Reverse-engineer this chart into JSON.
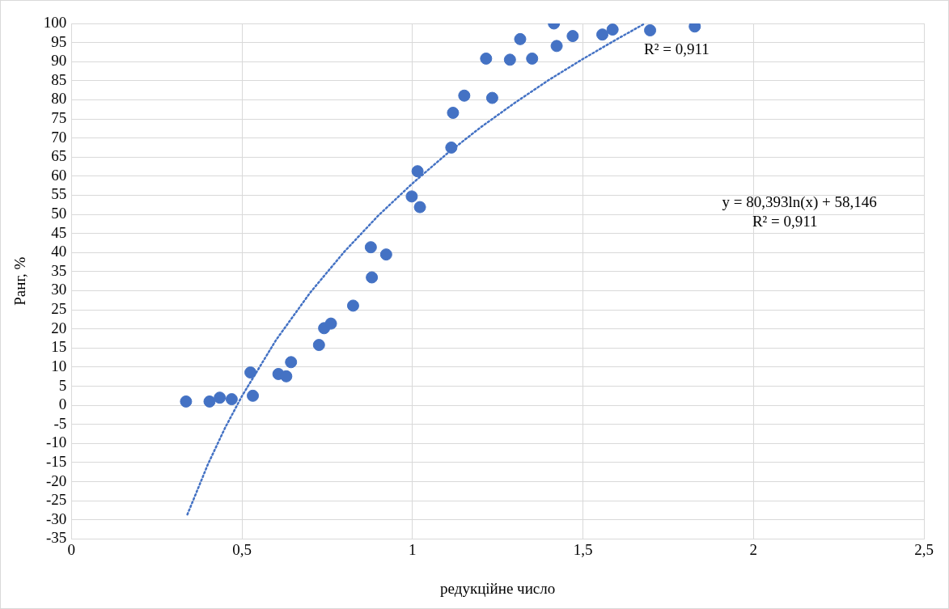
{
  "chart_data": {
    "type": "scatter",
    "xlabel": "редукційне число",
    "ylabel": "Ранг, %",
    "xlim": [
      0,
      2.5
    ],
    "xticks": [
      0,
      {
        "value": 0.5,
        "label": "0,5"
      },
      1,
      {
        "value": 1.5,
        "label": "1,5"
      },
      2,
      {
        "value": 2.5,
        "label": "2,5"
      }
    ],
    "ylim": [
      -35,
      100
    ],
    "yticks": [
      -35,
      -30,
      -25,
      -20,
      -15,
      -10,
      -5,
      0,
      5,
      10,
      15,
      20,
      25,
      30,
      35,
      40,
      45,
      50,
      55,
      60,
      65,
      70,
      75,
      80,
      85,
      90,
      95,
      100
    ],
    "grid": true,
    "legend": false,
    "series": [
      {
        "color": "#4472c4",
        "marker": "circle",
        "x": [
          0.336,
          0.405,
          0.435,
          0.47,
          0.525,
          0.532,
          0.607,
          0.63,
          0.644,
          0.726,
          0.741,
          0.761,
          0.826,
          0.878,
          0.881,
          0.923,
          0.998,
          1.015,
          1.022,
          1.114,
          1.119,
          1.152,
          1.216,
          1.234,
          1.286,
          1.316,
          1.351,
          1.415,
          1.423,
          1.47,
          1.557,
          1.587,
          1.697,
          1.828
        ],
        "values": [
          1,
          1,
          2,
          1.6,
          8.6,
          2.5,
          8.2,
          7.6,
          11.3,
          15.8,
          20.2,
          21.4,
          26.1,
          41.4,
          33.5,
          39.5,
          54.7,
          61.3,
          51.9,
          67.5,
          76.6,
          81.1,
          90.8,
          80.5,
          90.5,
          95.9,
          90.8,
          100,
          94.1,
          96.7,
          97.1,
          98.4,
          98.2,
          99.2
        ]
      },
      {
        "type": "line",
        "color": "#4472c4",
        "marker": "none",
        "line_style": "dotted",
        "x": [
          0.34,
          0.4,
          0.45,
          0.5,
          0.6,
          0.7,
          0.8,
          0.9,
          1.0,
          1.1,
          1.2,
          1.3,
          1.4,
          1.5,
          1.6,
          1.68
        ],
        "values": [
          -28.6,
          -15.5,
          -6,
          2.4,
          17.1,
          29.5,
          40.2,
          49.7,
          58.1,
          65.8,
          72.8,
          79.2,
          85.2,
          90.7,
          95.9,
          99.9
        ]
      }
    ],
    "annotations": [
      "R² = 0,911",
      "y = 80,393ln(x) + 58,146",
      "R² = 0,911"
    ]
  }
}
